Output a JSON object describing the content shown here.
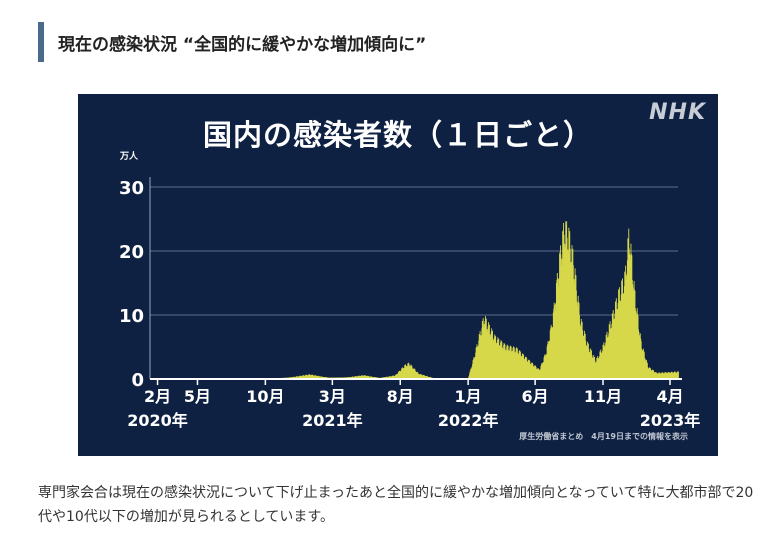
{
  "heading": "現在の感染状況 “全国的に緩やかな増加傾向に”",
  "logo": "NHK",
  "source_note": "厚生労働省まとめ　4月19日までの情報を表示",
  "body_text": "専門家会合は現在の感染状況について下げ止まったあと全国的に緩やかな増加傾向となっていて特に大都市部で20代や10代以下の増加が見られるとしています。",
  "chart_data": {
    "type": "bar",
    "title": "国内の感染者数（１日ごと）",
    "ylabel": "万人",
    "ylim": [
      0,
      30
    ],
    "yticks": [
      "0",
      "10",
      "20",
      "30"
    ],
    "grid": true,
    "bar_color": "#d6d84a",
    "x_ticks": [
      {
        "month": "2月",
        "date": "2020-02-01",
        "year": "2020年"
      },
      {
        "month": "5月",
        "date": "2020-05-01",
        "year": ""
      },
      {
        "month": "10月",
        "date": "2020-10-01",
        "year": ""
      },
      {
        "month": "3月",
        "date": "2021-03-01",
        "year": "2021年"
      },
      {
        "month": "8月",
        "date": "2021-08-01",
        "year": ""
      },
      {
        "month": "1月",
        "date": "2022-01-01",
        "year": "2022年"
      },
      {
        "month": "6月",
        "date": "2022-06-01",
        "year": ""
      },
      {
        "month": "11月",
        "date": "2022-11-01",
        "year": ""
      },
      {
        "month": "4月",
        "date": "2023-04-01",
        "year": "2023年"
      }
    ],
    "x_range": [
      "2020-01-15",
      "2023-04-19"
    ],
    "x": [
      "2020-01-15",
      "2020-04-10",
      "2020-06-15",
      "2020-08-05",
      "2020-10-01",
      "2020-11-20",
      "2021-01-08",
      "2021-02-20",
      "2021-04-01",
      "2021-05-10",
      "2021-06-15",
      "2021-07-20",
      "2021-08-10",
      "2021-08-20",
      "2021-09-10",
      "2021-10-15",
      "2021-11-20",
      "2021-12-31",
      "2022-01-15",
      "2022-02-05",
      "2022-03-01",
      "2022-03-25",
      "2022-04-20",
      "2022-05-15",
      "2022-06-10",
      "2022-06-25",
      "2022-07-10",
      "2022-07-25",
      "2022-08-05",
      "2022-08-15",
      "2022-08-25",
      "2022-09-10",
      "2022-09-25",
      "2022-10-15",
      "2022-11-01",
      "2022-11-20",
      "2022-12-05",
      "2022-12-20",
      "2022-12-29",
      "2023-01-10",
      "2023-01-25",
      "2023-02-10",
      "2023-03-01",
      "2023-04-19"
    ],
    "values": [
      0,
      0.06,
      0.02,
      0.12,
      0.07,
      0.2,
      0.75,
      0.2,
      0.25,
      0.62,
      0.15,
      0.6,
      2.2,
      2.6,
      0.9,
      0.1,
      0.02,
      0.05,
      4.0,
      10.3,
      7.0,
      5.5,
      5.0,
      3.2,
      1.5,
      4.5,
      10.0,
      20.0,
      25.5,
      24.0,
      20.0,
      10.0,
      6.0,
      3.0,
      5.5,
      10.0,
      14.0,
      17.0,
      24.5,
      14.5,
      6.0,
      2.0,
      1.0,
      1.2
    ]
  }
}
